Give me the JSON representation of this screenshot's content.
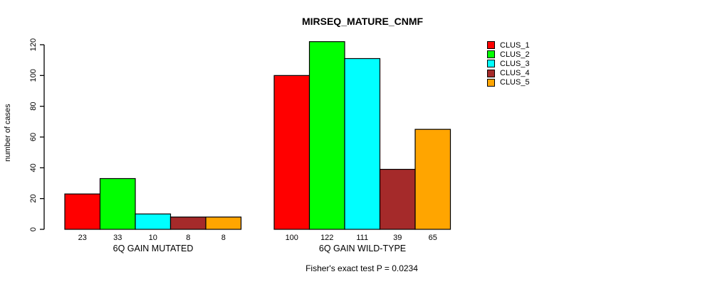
{
  "chart_data": {
    "type": "bar",
    "title": "MIRSEQ_MATURE_CNMF",
    "ylabel": "number of cases",
    "xlabel": "",
    "categories": [
      "6Q GAIN MUTATED",
      "6Q GAIN WILD-TYPE"
    ],
    "series": [
      {
        "name": "CLUS_1",
        "color": "#FF0000",
        "values": [
          23,
          100
        ]
      },
      {
        "name": "CLUS_2",
        "color": "#00FF00",
        "values": [
          33,
          122
        ]
      },
      {
        "name": "CLUS_3",
        "color": "#00FFFF",
        "values": [
          10,
          111
        ]
      },
      {
        "name": "CLUS_4",
        "color": "#A52A2A",
        "values": [
          8,
          39
        ]
      },
      {
        "name": "CLUS_5",
        "color": "#FFA500",
        "values": [
          8,
          65
        ]
      }
    ],
    "bar_value_labels": {
      "shown": true,
      "labels": [
        [
          "23",
          "33",
          "10",
          "8",
          "8"
        ],
        [
          "100",
          "122",
          "111",
          "39",
          "65"
        ]
      ]
    },
    "yticks": [
      0,
      20,
      40,
      60,
      80,
      100,
      120
    ],
    "ylim": [
      0,
      120
    ],
    "grid": false,
    "legend_position": "top-right-outside",
    "axis_color": "#000000",
    "bar_border_color": "#000000",
    "annotation": "Fisher's exact test P = 0.0234"
  }
}
